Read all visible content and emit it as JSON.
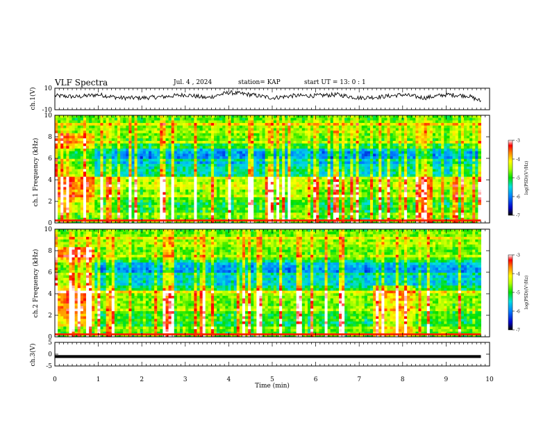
{
  "header": {
    "title": "VLF Spectra",
    "date": "Jul. 4 , 2024",
    "station": "station= KAP",
    "start_ut": "start UT =  13: 0  : 1"
  },
  "chart_data": [
    {
      "type": "line",
      "panel": "ch1-waveform",
      "ylabel": "ch.1(V)",
      "ylim": [
        -10,
        10
      ],
      "yticks": [
        10,
        -10
      ],
      "xlim": [
        0,
        10
      ],
      "x": [
        0.0,
        0.5,
        1.0,
        1.5,
        2.0,
        2.5,
        3.0,
        3.5,
        4.0,
        4.5,
        5.0,
        5.5,
        6.0,
        6.5,
        7.0,
        7.5,
        8.0,
        8.5,
        9.0,
        9.5,
        9.8
      ],
      "values": [
        3,
        2,
        4,
        1,
        1,
        2,
        4,
        1,
        6,
        4,
        1,
        3,
        3,
        4,
        1,
        2,
        4,
        1,
        4,
        3,
        -2
      ],
      "line_color": "#000000"
    },
    {
      "type": "heatmap",
      "panel": "ch1-spectrogram",
      "ylabel": "ch.1 Frequency (kHz)",
      "ylim": [
        0,
        10
      ],
      "yticks": [
        0,
        2,
        4,
        6,
        8,
        10
      ],
      "xlim": [
        0,
        10
      ],
      "data_end_min": 9.8,
      "colorbar": {
        "label": "log(PSD)(V²/Hz)",
        "ticks": [
          -3,
          -4,
          -5,
          -6,
          -7
        ],
        "range": [
          -7,
          -3
        ]
      }
    },
    {
      "type": "heatmap",
      "panel": "ch2-spectrogram",
      "ylabel": "ch.2 Frequency (kHz)",
      "ylim": [
        0,
        10
      ],
      "yticks": [
        0,
        2,
        4,
        6,
        8,
        10
      ],
      "xlim": [
        0,
        10
      ],
      "data_end_min": 9.8,
      "colorbar": {
        "label": "log(PSD)(V²/Hz)",
        "ticks": [
          -3,
          -4,
          -5,
          -6,
          -7
        ],
        "range": [
          -7,
          -3
        ]
      }
    },
    {
      "type": "line",
      "panel": "ch3-waveform",
      "ylabel": "ch.3(V)",
      "ylim": [
        -5,
        5
      ],
      "yticks": [
        5,
        0,
        -5
      ],
      "xlim": [
        0,
        10
      ],
      "x": [
        0.0,
        9.8
      ],
      "values": [
        -1.0,
        -1.0
      ],
      "band_halfwidth_v": 0.6
    }
  ],
  "xaxis": {
    "label": "Time (min)",
    "ticks": [
      "0",
      "1",
      "2",
      "3",
      "4",
      "5",
      "6",
      "7",
      "8",
      "9",
      "10"
    ]
  },
  "colors": {
    "line": "#000000",
    "frame": "#000000",
    "background": "#ffffff"
  }
}
